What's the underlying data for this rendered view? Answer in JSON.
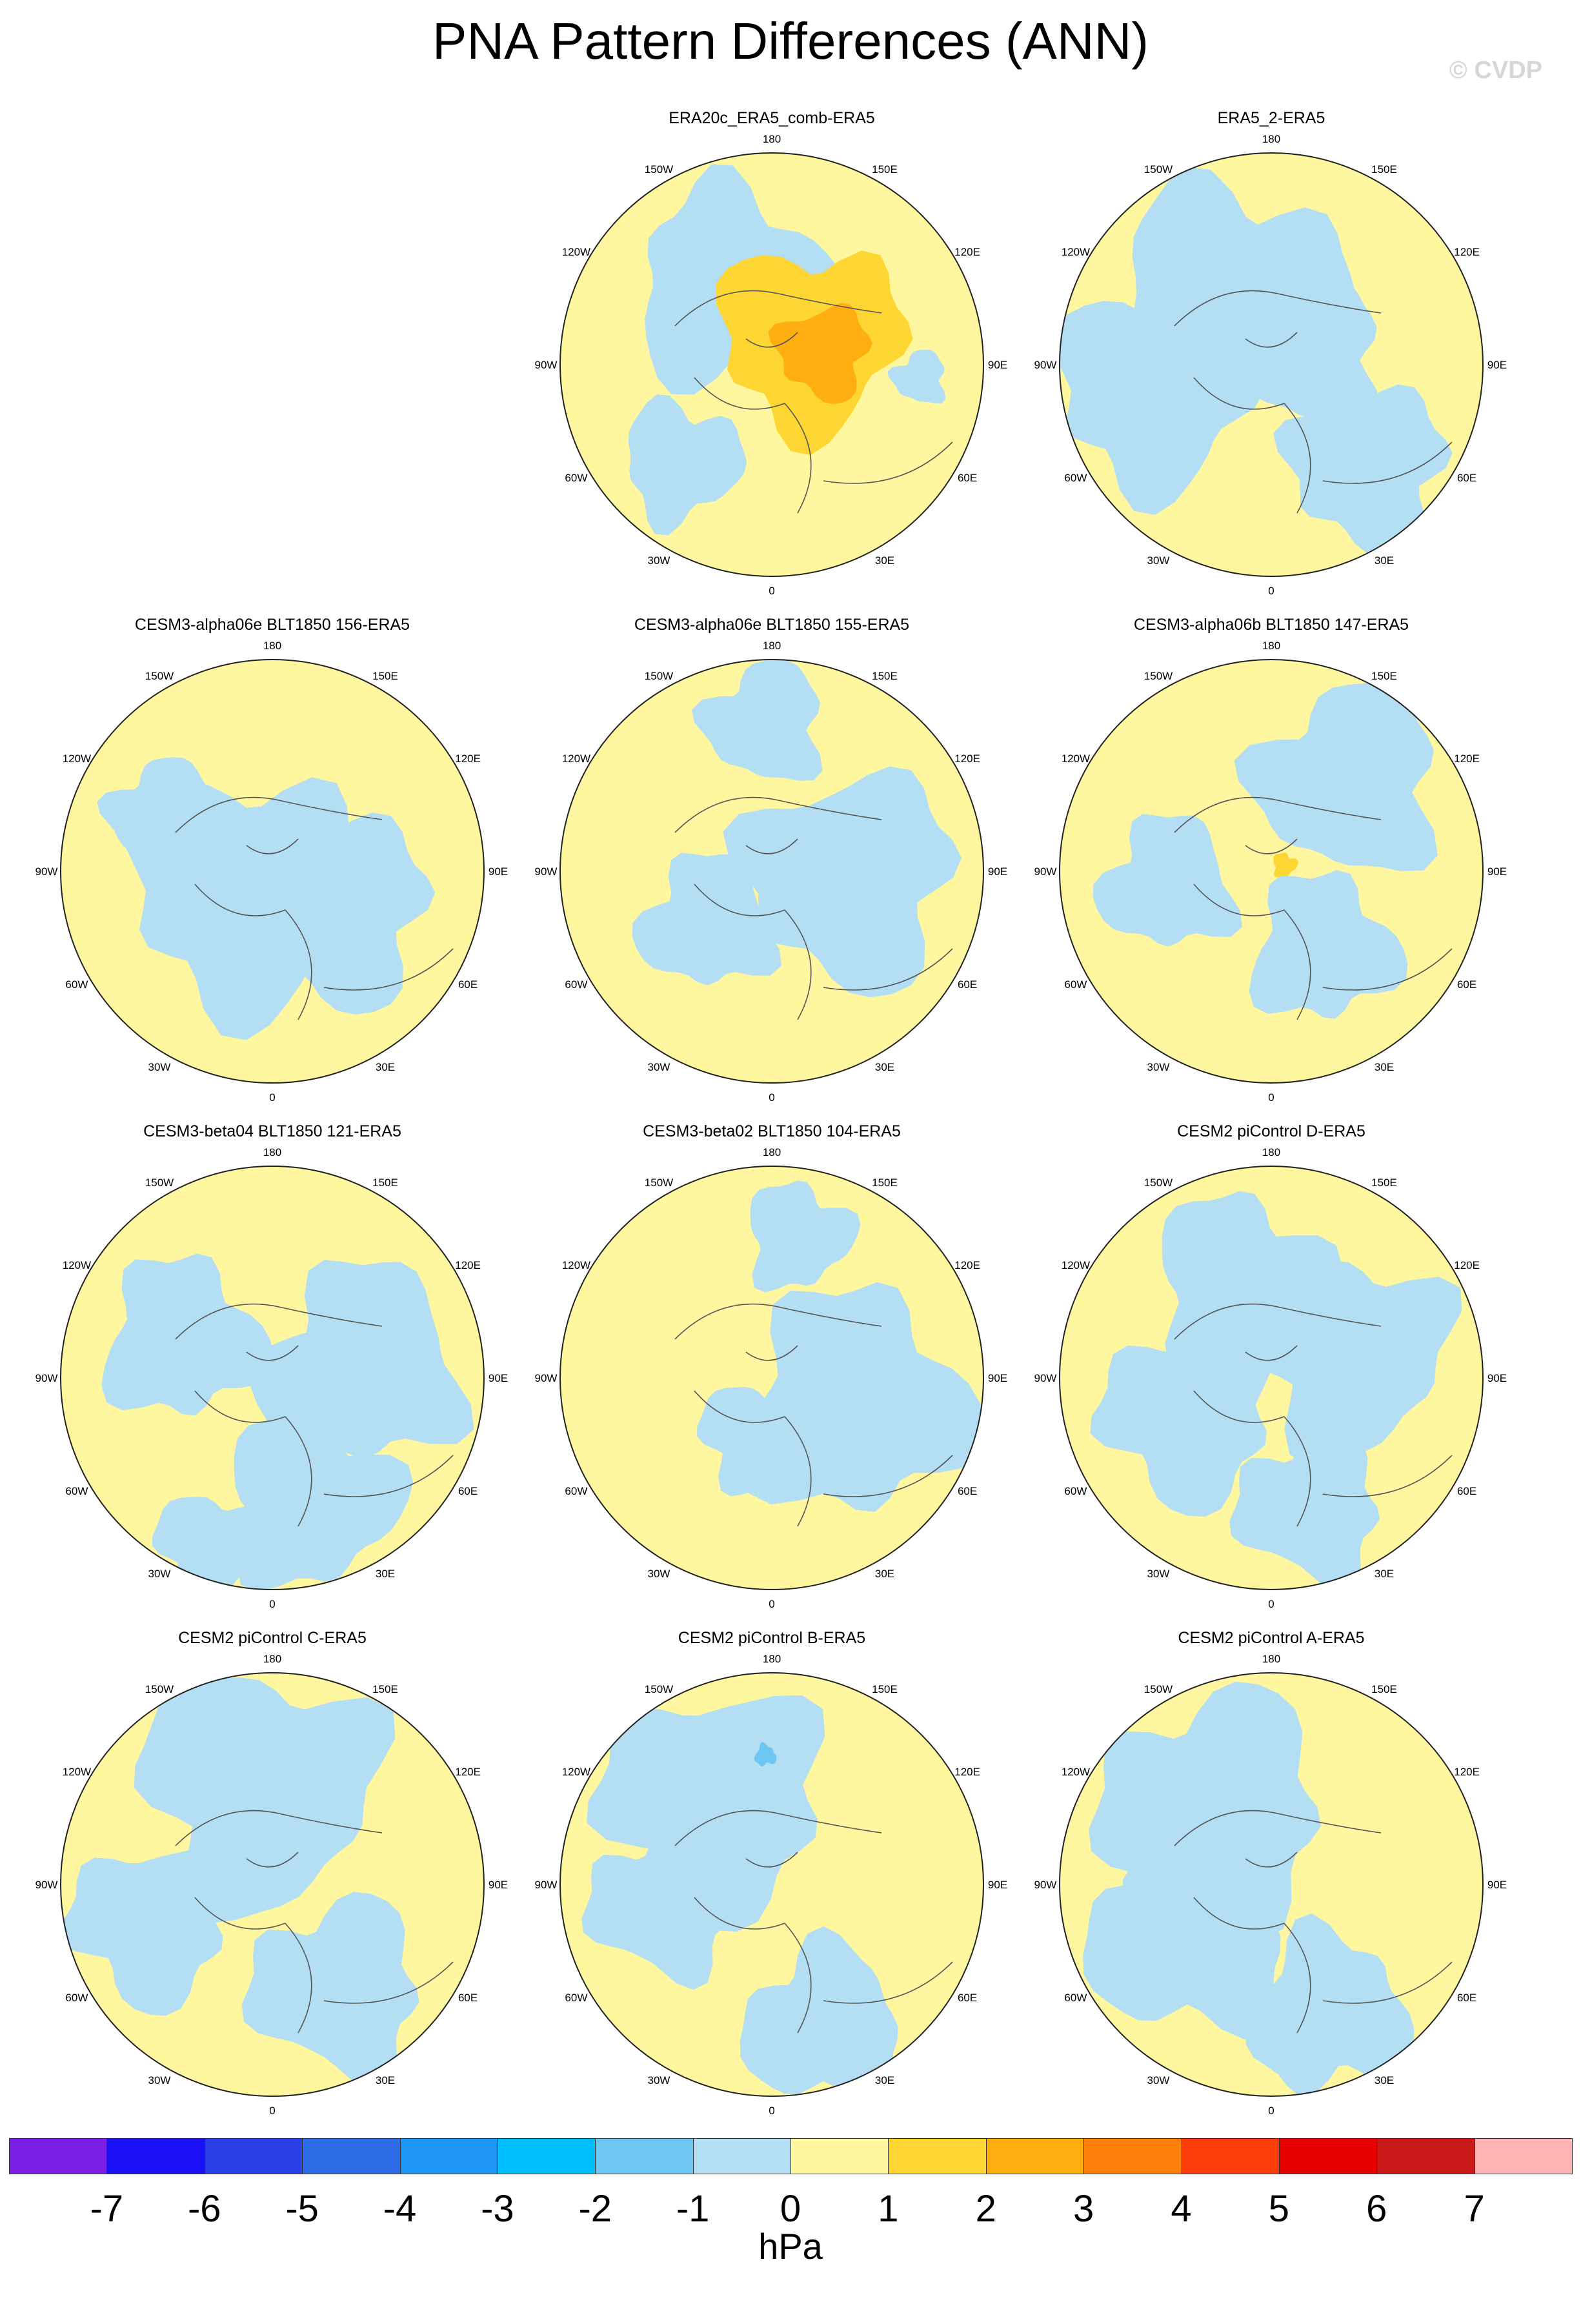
{
  "title": "PNA Pattern Differences (ANN)",
  "copyright": "© CVDP",
  "colors": {
    "levels": [
      "#7b1fe8",
      "#1a10f5",
      "#2a3ee6",
      "#2f6de8",
      "#1e96f5",
      "#00bfff",
      "#6ec6f2",
      "#b4def3",
      "#fff7a0",
      "#fdd633",
      "#ffae10",
      "#ff7f0a",
      "#ff3d0a",
      "#e80000",
      "#c81818",
      "#ffb3b3"
    ],
    "coast": "#555555",
    "positive_strong": "#fdd633",
    "positive_stronger": "#ffae10",
    "negative": "#b4def3",
    "negative_strong": "#6ec6f2"
  },
  "colorbar": {
    "labels": [
      "-7",
      "-6",
      "-5",
      "-4",
      "-3",
      "-2",
      "-1",
      "0",
      "1",
      "2",
      "3",
      "4",
      "5",
      "6",
      "7"
    ],
    "units": "hPa"
  },
  "longitude_labels": [
    "180",
    "150E",
    "120E",
    "90E",
    "60E",
    "30E",
    "0",
    "30W",
    "60W",
    "90W",
    "120W",
    "150W"
  ],
  "panels": [
    {
      "title": "ERA20c_ERA5_comb-ERA5"
    },
    {
      "title": "ERA5_2-ERA5"
    },
    {
      "title": "CESM3-alpha06e BLT1850 156-ERA5"
    },
    {
      "title": "CESM3-alpha06e BLT1850 155-ERA5"
    },
    {
      "title": "CESM3-alpha06b BLT1850 147-ERA5"
    },
    {
      "title": "CESM3-beta04 BLT1850 121-ERA5"
    },
    {
      "title": "CESM3-beta02 BLT1850 104-ERA5"
    },
    {
      "title": "CESM2 piControl D-ERA5"
    },
    {
      "title": "CESM2 piControl C-ERA5"
    },
    {
      "title": "CESM2 piControl B-ERA5"
    },
    {
      "title": "CESM2 piControl A-ERA5"
    }
  ]
}
